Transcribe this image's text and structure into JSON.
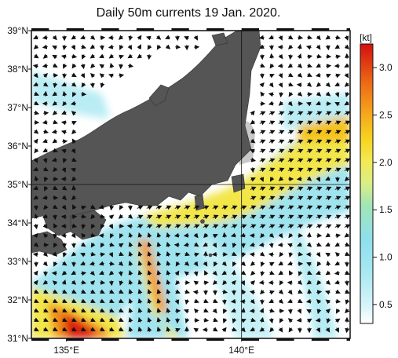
{
  "title": "Daily 50m currents 19 Jan. 2020.",
  "colorbar": {
    "unit": "[kt]",
    "ticks": [
      "3.0",
      "2.5",
      "2.0",
      "1.5",
      "1.0",
      "0.5"
    ],
    "tick_values": [
      3.0,
      2.5,
      2.0,
      1.5,
      1.0,
      0.5
    ],
    "range": [
      0.3,
      3.25
    ],
    "colors": [
      "#ffffff",
      "#bfeff6",
      "#8fe1ee",
      "#a6e7b0",
      "#f3f08a",
      "#f6dd22",
      "#f7b21c",
      "#ef7a15",
      "#e33b0e",
      "#d40f0f"
    ]
  },
  "map": {
    "lat_labels": [
      "39°N",
      "38°N",
      "37°N",
      "36°N",
      "35°N",
      "34°N",
      "33°N",
      "32°N",
      "31°N"
    ],
    "lat_values": [
      39,
      38,
      37,
      36,
      35,
      34,
      33,
      32,
      31
    ],
    "lon_labels": [
      "135°E",
      "140°E"
    ],
    "lon_values": [
      135,
      140
    ],
    "lon_range": [
      134.0,
      143.1
    ],
    "lat_range": [
      31,
      39
    ],
    "land_color": "#555555",
    "shelf_color": "#c8c8c8",
    "grid_color": "#111111"
  }
}
